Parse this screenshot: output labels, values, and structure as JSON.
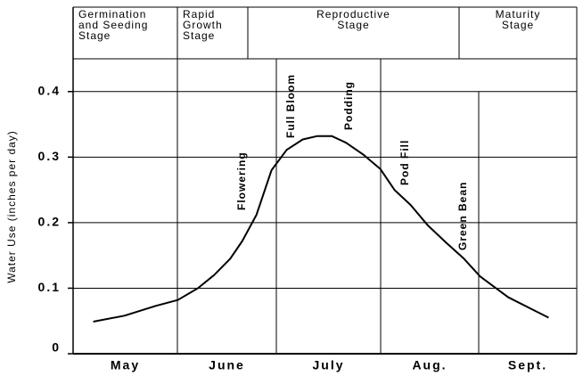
{
  "chart_data": {
    "type": "line",
    "ylabel": "Water Use (inches per day)",
    "categories": [
      "May",
      "June",
      "July",
      "Aug.",
      "Sept."
    ],
    "xlim": [
      0,
      5
    ],
    "ylim": [
      0,
      0.45
    ],
    "yticks": [
      0,
      0.1,
      0.2,
      0.3,
      0.4
    ],
    "color": "#000000",
    "x": [
      0.2,
      0.51,
      0.82,
      1.04,
      1.24,
      1.4,
      1.56,
      1.68,
      1.82,
      1.97,
      2.12,
      2.28,
      2.42,
      2.57,
      2.71,
      2.88,
      3.05,
      3.19,
      3.35,
      3.52,
      3.7,
      3.88,
      4.04,
      4.32,
      4.58,
      4.72
    ],
    "values": [
      0.049,
      0.058,
      0.073,
      0.082,
      0.1,
      0.12,
      0.145,
      0.172,
      0.212,
      0.28,
      0.311,
      0.327,
      0.332,
      0.332,
      0.322,
      0.304,
      0.282,
      0.25,
      0.227,
      0.196,
      0.17,
      0.145,
      0.118,
      0.086,
      0.066,
      0.055
    ],
    "stages": [
      [
        "Germination",
        "and Seeding",
        "Stage"
      ],
      [
        "Rapid",
        "Growth",
        "Stage"
      ],
      [
        "Reproductive",
        "Stage"
      ],
      [
        "Maturity",
        "Stage"
      ]
    ],
    "annotations": [
      "Flowering",
      "Full Bloom",
      "Podding",
      "Pod Fill",
      "Green Bean"
    ]
  }
}
